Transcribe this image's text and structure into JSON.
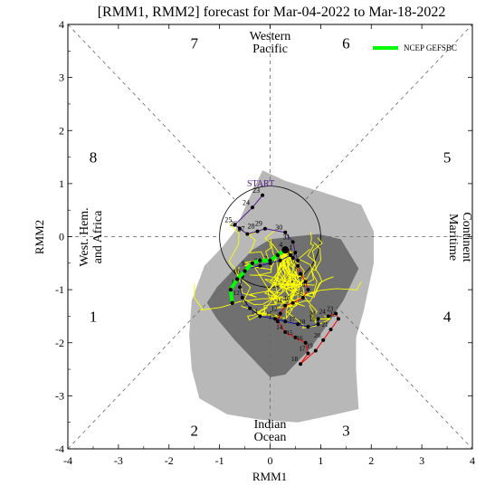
{
  "chart_data": {
    "type": "scatter",
    "title": "[RMM1, RMM2] forecast for Mar-04-2022 to Mar-18-2022",
    "xlabel": "RMM1",
    "ylabel": "RMM2",
    "xlim": [
      -4,
      4
    ],
    "ylim": [
      -4,
      4
    ],
    "xticks": [
      -4,
      -3,
      -2,
      -1,
      0,
      1,
      2,
      3,
      4
    ],
    "yticks": [
      -4,
      -3,
      -2,
      -1,
      0,
      1,
      2,
      3,
      4
    ],
    "legend": {
      "label": "NCEP GEFSBC",
      "color": "#00ff00",
      "position": "top-right"
    },
    "phase_numbers": [
      {
        "text": "1",
        "x": -3.5,
        "y": -1.5
      },
      {
        "text": "2",
        "x": -1.5,
        "y": -3.65
      },
      {
        "text": "3",
        "x": 1.5,
        "y": -3.65
      },
      {
        "text": "4",
        "x": 3.5,
        "y": -1.5
      },
      {
        "text": "5",
        "x": 3.5,
        "y": 1.5
      },
      {
        "text": "6",
        "x": 1.5,
        "y": 3.65
      },
      {
        "text": "7",
        "x": -1.5,
        "y": 3.65
      },
      {
        "text": "8",
        "x": -3.5,
        "y": 1.5
      }
    ],
    "region_labels": {
      "top": [
        "Western",
        "Pacific"
      ],
      "bottom": [
        "Indian",
        "Ocean"
      ],
      "left": [
        "West. Hem.",
        "and Africa"
      ],
      "right": [
        "Maritime",
        "Continent"
      ]
    },
    "start_label": "START",
    "envelope_90": [
      [
        -0.15,
        1.25
      ],
      [
        0.3,
        1.05
      ],
      [
        1.0,
        0.85
      ],
      [
        1.8,
        0.6
      ],
      [
        2.05,
        0.1
      ],
      [
        2.05,
        -0.5
      ],
      [
        1.85,
        -1.4
      ],
      [
        1.7,
        -1.9
      ],
      [
        1.7,
        -2.5
      ],
      [
        1.75,
        -3.25
      ],
      [
        1.3,
        -3.35
      ],
      [
        0.55,
        -3.5
      ],
      [
        -0.2,
        -3.45
      ],
      [
        -0.85,
        -3.35
      ],
      [
        -1.4,
        -3.05
      ],
      [
        -1.55,
        -2.5
      ],
      [
        -1.6,
        -1.85
      ],
      [
        -1.55,
        -1.2
      ],
      [
        -1.3,
        -0.55
      ],
      [
        -0.95,
        -0.2
      ],
      [
        -0.7,
        0.1
      ],
      [
        -0.45,
        0.65
      ],
      [
        -0.25,
        1.05
      ]
    ],
    "envelope_50": [
      [
        0.0,
        -0.05
      ],
      [
        0.45,
        0.0
      ],
      [
        0.95,
        0.05
      ],
      [
        1.4,
        -0.05
      ],
      [
        1.75,
        -0.6
      ],
      [
        1.45,
        -1.2
      ],
      [
        1.1,
        -1.7
      ],
      [
        0.8,
        -2.1
      ],
      [
        0.3,
        -2.6
      ],
      [
        0.0,
        -2.65
      ],
      [
        -0.35,
        -2.3
      ],
      [
        -0.7,
        -1.95
      ],
      [
        -1.05,
        -1.55
      ],
      [
        -1.25,
        -1.25
      ],
      [
        -1.05,
        -0.95
      ],
      [
        -0.65,
        -0.55
      ],
      [
        -0.35,
        -0.25
      ]
    ],
    "observed": {
      "color": "#551a8b",
      "labels": [
        "23",
        "24",
        "25",
        "26",
        "27",
        "28",
        "29",
        "30",
        "31",
        "1",
        "2",
        "3",
        "4"
      ],
      "x": [
        -0.15,
        -0.35,
        -0.7,
        -0.6,
        -0.45,
        -0.25,
        -0.1,
        0.3,
        0.45,
        0.5,
        0.55,
        0.45,
        0.3
      ],
      "y": [
        0.78,
        0.55,
        0.22,
        0.15,
        0.05,
        0.1,
        0.15,
        0.08,
        -0.1,
        -0.3,
        -0.45,
        -0.4,
        -0.25
      ]
    },
    "ensemble_mean": {
      "name": "NCEP GEFSBC",
      "color": "#00ff00",
      "x": [
        0.3,
        0.15,
        0.0,
        -0.2,
        -0.35,
        -0.5,
        -0.65,
        -0.78,
        -0.75
      ],
      "y": [
        -0.25,
        -0.35,
        -0.45,
        -0.45,
        -0.5,
        -0.65,
        -0.8,
        -1.0,
        -1.25
      ]
    },
    "forecast_path_a": {
      "color": "#ff0000",
      "labels": [
        "5",
        "6",
        "7",
        "8",
        "9",
        "10",
        "11",
        "12",
        "13",
        "14",
        "15",
        "16",
        "17",
        "18",
        "19",
        "20",
        "21",
        "22",
        "23",
        "24"
      ],
      "x": [
        0.55,
        0.6,
        0.7,
        0.75,
        0.65,
        0.45,
        0.3,
        0.2,
        0.15,
        0.3,
        0.5,
        0.7,
        0.75,
        0.6,
        0.9,
        1.05,
        1.2,
        1.35,
        1.3,
        1.15
      ],
      "y": [
        -0.55,
        -0.7,
        -0.85,
        -1.0,
        -1.15,
        -1.25,
        -1.3,
        -1.45,
        -1.6,
        -1.8,
        -1.9,
        -2.0,
        -2.2,
        -2.4,
        -2.15,
        -1.95,
        -1.75,
        -1.55,
        -1.45,
        -1.5
      ]
    },
    "forecast_path_b": {
      "color": "#0000aa",
      "labels": [
        "5",
        "6",
        "7",
        "8",
        "9",
        "10",
        "11",
        "12",
        "13",
        "14",
        "15",
        "16",
        "17",
        "18",
        "19",
        "20"
      ],
      "x": [
        0.4,
        0.2,
        0.0,
        -0.2,
        -0.45,
        -0.55,
        -0.6,
        -0.55,
        -0.4,
        -0.2,
        0.1,
        0.3,
        0.55,
        0.75,
        0.95,
        0.95
      ],
      "y": [
        -0.35,
        -0.45,
        -0.5,
        -0.55,
        -0.6,
        -0.75,
        -0.95,
        -1.15,
        -1.35,
        -1.5,
        -1.55,
        -1.6,
        -1.65,
        -1.7,
        -1.65,
        -1.55
      ]
    }
  }
}
